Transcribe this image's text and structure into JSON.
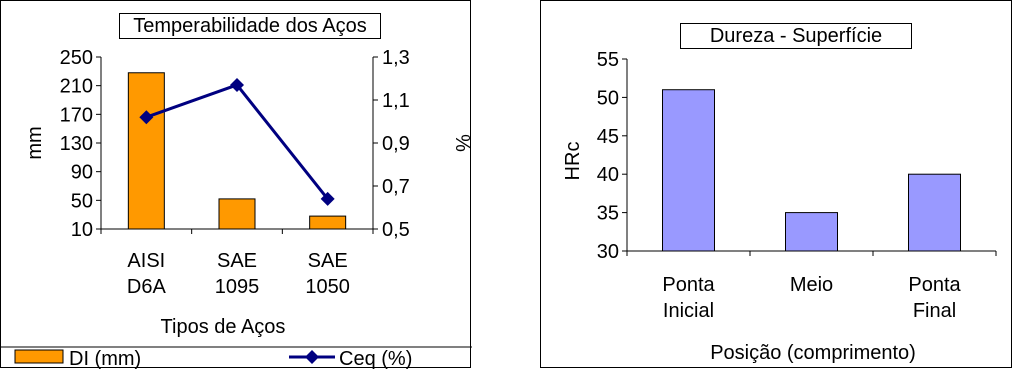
{
  "chart_data": [
    {
      "type": "bar+line",
      "title": "Temperabilidade dos Aços",
      "xlabel": "Tipos de Aços",
      "ylabel": "mm",
      "y2label": "%",
      "categories": [
        [
          "AISI",
          "D6A"
        ],
        [
          "SAE",
          "1095"
        ],
        [
          "SAE",
          "1050"
        ]
      ],
      "ylim": [
        10,
        250
      ],
      "yticks": [
        "10",
        "50",
        "90",
        "130",
        "170",
        "210",
        "250"
      ],
      "y2lim": [
        0.5,
        1.3
      ],
      "y2ticks": [
        "0,5",
        "0,7",
        "0,9",
        "1,1",
        "1,3"
      ],
      "series": [
        {
          "name": "DI (mm)",
          "kind": "bar",
          "axis": "left",
          "values": [
            228,
            52,
            28
          ],
          "color": "#ff9900"
        },
        {
          "name": "Ceq (%)",
          "kind": "line",
          "axis": "right",
          "values": [
            1.02,
            1.17,
            0.64
          ],
          "color": "#000080"
        }
      ],
      "legend": "bottom",
      "grid": false
    },
    {
      "type": "bar",
      "title": "Dureza - Superfície",
      "xlabel": "Posição (comprimento)",
      "ylabel": "HRc",
      "categories": [
        [
          "Ponta",
          "Inicial"
        ],
        [
          "Meio"
        ],
        [
          "Ponta",
          "Final"
        ]
      ],
      "values": [
        51,
        35,
        40
      ],
      "ylim": [
        30,
        55
      ],
      "yticks": [
        "30",
        "35",
        "40",
        "45",
        "50",
        "55"
      ],
      "color": "#9999ff",
      "grid": false
    }
  ]
}
